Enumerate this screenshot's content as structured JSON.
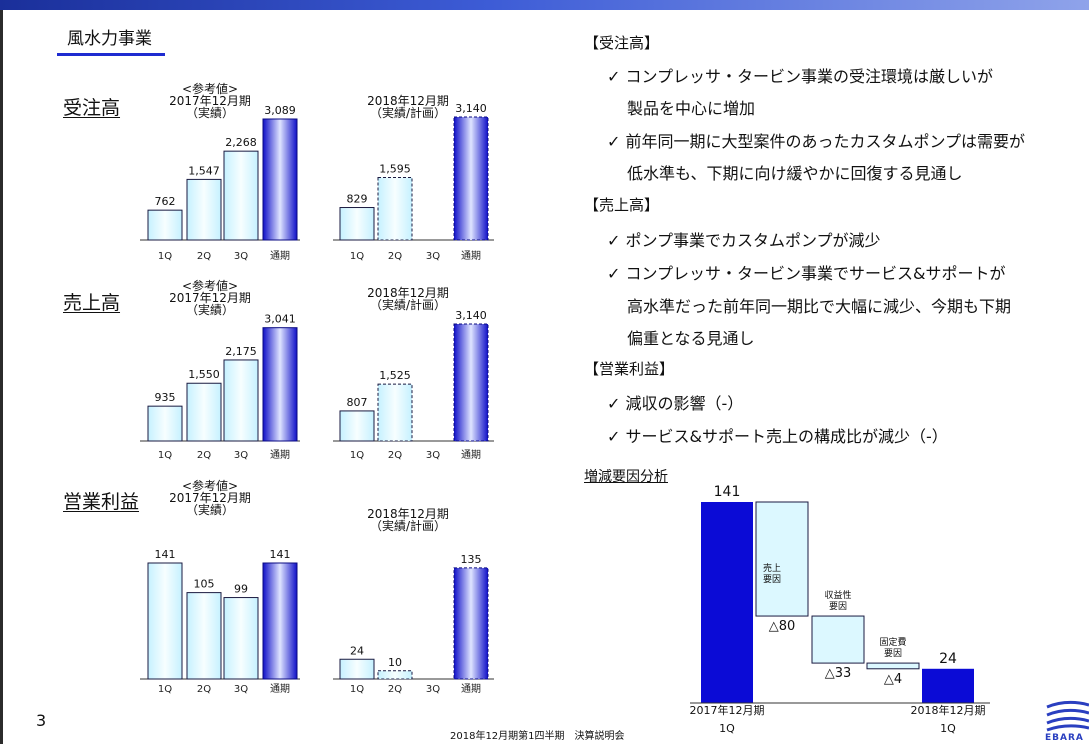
{
  "slide": {
    "section_title": "風水力事業",
    "page_number": "3",
    "footer": "2018年12月期第1四半期　決算説明会",
    "colors": {
      "accent": "#0b0bd6",
      "light": "#dcf8ff",
      "border": "#1a1a40"
    }
  },
  "headings": {
    "orders": "受注高",
    "sales": "売上高",
    "profit": "営業利益"
  },
  "chart_notes": {
    "ref_line1": "<参考値>",
    "ref_line2": "2017年12月期",
    "ref_line3": "（実績）",
    "fy2018_line1": "2018年12月期",
    "fy2018_line2": "（実績/計画）"
  },
  "chart_data": [
    {
      "type": "bar",
      "id": "orders",
      "categories": [
        "1Q",
        "2Q",
        "3Q",
        "通期"
      ],
      "groups": [
        {
          "labels": [
            "762",
            "1,547",
            "2,268",
            "3,089"
          ],
          "values": [
            762,
            1547,
            2268,
            3089
          ]
        },
        {
          "labels": [
            "829",
            "1,595",
            "",
            "3,140"
          ],
          "values": [
            829,
            1595,
            null,
            3140
          ]
        }
      ]
    },
    {
      "type": "bar",
      "id": "sales",
      "categories": [
        "1Q",
        "2Q",
        "3Q",
        "通期"
      ],
      "groups": [
        {
          "labels": [
            "935",
            "1,550",
            "2,175",
            "3,041"
          ],
          "values": [
            935,
            1550,
            2175,
            3041
          ]
        },
        {
          "labels": [
            "807",
            "1,525",
            "",
            "3,140"
          ],
          "values": [
            807,
            1525,
            null,
            3140
          ]
        }
      ]
    },
    {
      "type": "bar",
      "id": "profit",
      "categories": [
        "1Q",
        "2Q",
        "3Q",
        "通期"
      ],
      "groups": [
        {
          "labels": [
            "141",
            "105",
            "99",
            "141"
          ],
          "values": [
            141,
            105,
            99,
            141
          ]
        },
        {
          "labels": [
            "24",
            "10",
            "",
            "135"
          ],
          "values": [
            24,
            10,
            null,
            135
          ]
        }
      ]
    },
    {
      "type": "bar",
      "id": "waterfall",
      "title": "増減要因分析",
      "steps": [
        {
          "label": "141",
          "value": 141,
          "kind": "total",
          "caption": [
            "2017年12月期",
            "1Q"
          ]
        },
        {
          "label": "△80",
          "value": -80,
          "kind": "delta",
          "inner": [
            "売上",
            "要因"
          ]
        },
        {
          "label": "△33",
          "value": -33,
          "kind": "delta",
          "inner": [
            "収益性",
            "要因"
          ]
        },
        {
          "label": "△4",
          "value": -4,
          "kind": "delta",
          "inner": [
            "固定費",
            "要因"
          ]
        },
        {
          "label": "24",
          "value": 24,
          "kind": "total",
          "caption": [
            "2018年12月期",
            "1Q"
          ]
        }
      ]
    }
  ],
  "right": {
    "orders_header": "【受注高】",
    "orders_items": [
      "✓ コンプレッサ・タービン事業の受注環境は厳しいが",
      "製品を中心に増加",
      "✓ 前年同一期に大型案件のあったカスタムポンプは需要が",
      "低水準も、下期に向け緩やかに回復する見通し"
    ],
    "sales_header": "【売上高】",
    "sales_items": [
      "✓ ポンプ事業でカスタムポンプが減少",
      "✓ コンプレッサ・タービン事業でサービス&サポートが",
      "高水準だった前年同一期比で大幅に減少、今期も下期",
      "偏重となる見通し"
    ],
    "profit_header": "【営業利益】",
    "profit_items": [
      "✓ 減収の影響（-）",
      "✓ サービス&サポート売上の構成比が減少（-）"
    ]
  },
  "logo": {
    "text": "EBARA"
  }
}
